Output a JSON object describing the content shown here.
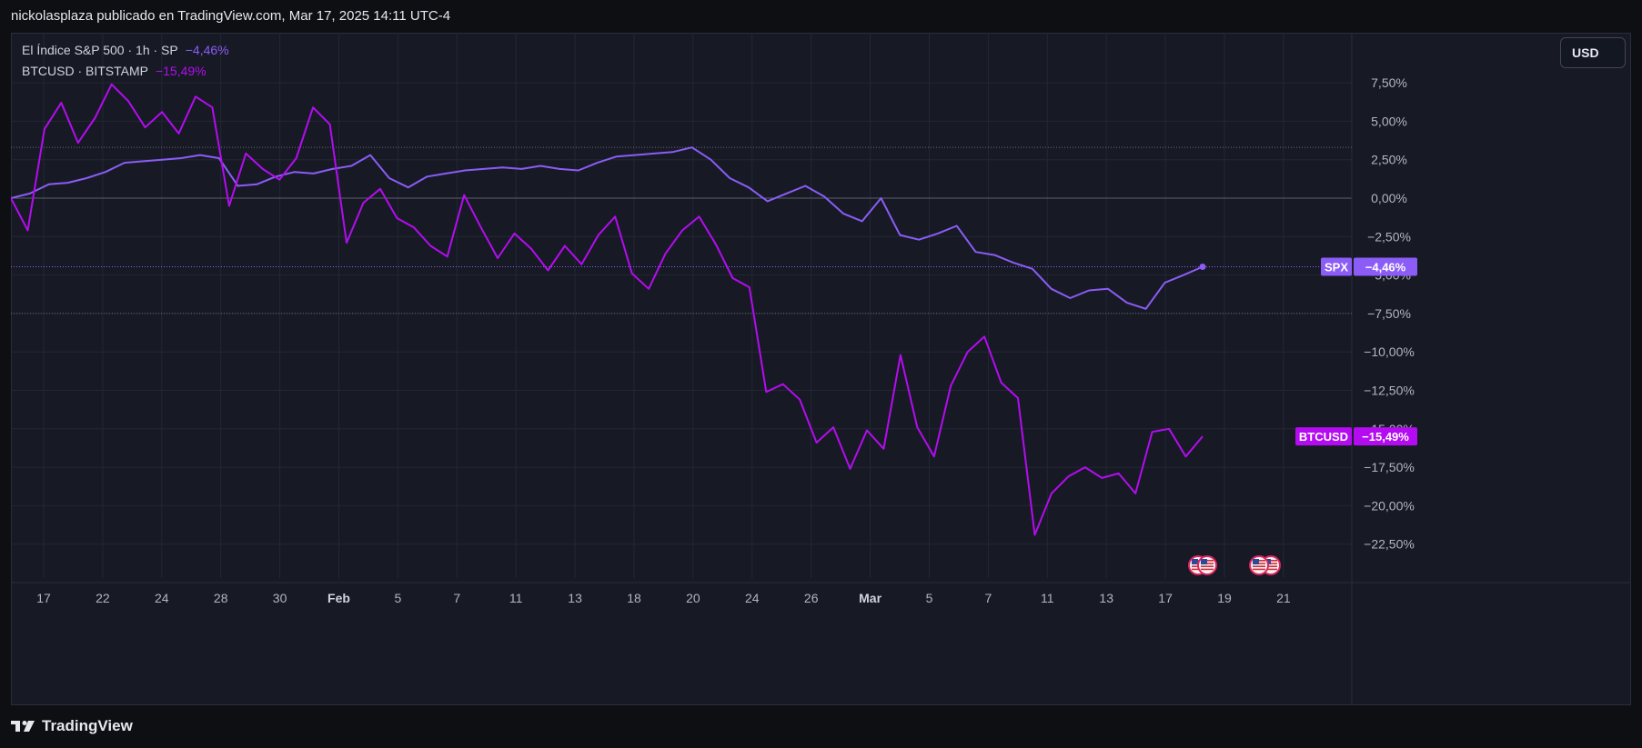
{
  "header": {
    "text": "nickolasplaza publicado en TradingView.com, Mar 17, 2025 14:11 UTC-4"
  },
  "legend": {
    "spx": {
      "label": "El Índice S&P 500 · 1h · SP",
      "change": "−4,46%"
    },
    "btc": {
      "label": "BTCUSD · BITSTAMP",
      "change": "−15,49%"
    }
  },
  "currency_button": {
    "label": "USD"
  },
  "footer": {
    "brand": "TradingView"
  },
  "colors": {
    "spx": "#8b5cf6",
    "btc": "#b40cf0",
    "background": "#171a25",
    "grid": "#232735"
  },
  "icons": [
    "us-flag-icon",
    "tradingview-logo-icon"
  ],
  "chart_data": {
    "type": "line",
    "title": "",
    "xlabel": "",
    "ylabel": "",
    "ylim": [
      -24.5,
      10
    ],
    "y_ticks": [
      7.5,
      5,
      2.5,
      0,
      -2.5,
      -5,
      -7.5,
      -10,
      -12.5,
      -15,
      -17.5,
      -20,
      -22.5
    ],
    "y_tick_labels": [
      "7,50%",
      "5,00%",
      "2,50%",
      "0,00%",
      "−2,50%",
      "−5,00%",
      "−7,50%",
      "−10,00%",
      "−12,50%",
      "−15,00%",
      "−17,50%",
      "−20,00%",
      "−22,50%"
    ],
    "x_ticks": [
      {
        "label": "17",
        "bold": false
      },
      {
        "label": "22",
        "bold": false
      },
      {
        "label": "24",
        "bold": false
      },
      {
        "label": "28",
        "bold": false
      },
      {
        "label": "30",
        "bold": false
      },
      {
        "label": "Feb",
        "bold": true
      },
      {
        "label": "5",
        "bold": false
      },
      {
        "label": "7",
        "bold": false
      },
      {
        "label": "11",
        "bold": false
      },
      {
        "label": "13",
        "bold": false
      },
      {
        "label": "18",
        "bold": false
      },
      {
        "label": "20",
        "bold": false
      },
      {
        "label": "24",
        "bold": false
      },
      {
        "label": "26",
        "bold": false
      },
      {
        "label": "Mar",
        "bold": true
      },
      {
        "label": "5",
        "bold": false
      },
      {
        "label": "7",
        "bold": false
      },
      {
        "label": "11",
        "bold": false
      },
      {
        "label": "13",
        "bold": false
      },
      {
        "label": "17",
        "bold": false
      },
      {
        "label": "19",
        "bold": false
      },
      {
        "label": "21",
        "bold": false
      }
    ],
    "series": [
      {
        "name": "SPX",
        "badge_label": "SPX",
        "badge_value": "−4,46%",
        "last": -4.46,
        "values": [
          0,
          0.3,
          0.9,
          1.0,
          1.3,
          1.7,
          2.3,
          2.4,
          2.5,
          2.6,
          2.8,
          2.6,
          0.8,
          0.9,
          1.4,
          1.7,
          1.6,
          1.9,
          2.1,
          2.8,
          1.3,
          0.7,
          1.4,
          1.6,
          1.8,
          1.9,
          2.0,
          1.9,
          2.1,
          1.9,
          1.8,
          2.3,
          2.7,
          2.8,
          2.9,
          3.0,
          3.3,
          2.5,
          1.3,
          0.7,
          -0.2,
          0.3,
          0.8,
          0.1,
          -1.0,
          -1.5,
          0.0,
          -2.4,
          -2.7,
          -2.3,
          -1.8,
          -3.5,
          -3.7,
          -4.2,
          -4.6,
          -5.9,
          -6.5,
          -6.0,
          -5.9,
          -6.8,
          -7.2,
          -5.5,
          -5.0,
          -4.46
        ]
      },
      {
        "name": "BTCUSD",
        "badge_label": "BTCUSD",
        "badge_value": "−15,49%",
        "last": -15.49,
        "values": [
          0,
          -2.1,
          4.5,
          6.2,
          3.6,
          5.2,
          7.4,
          6.3,
          4.6,
          5.6,
          4.2,
          6.6,
          5.9,
          -0.5,
          2.9,
          1.9,
          1.2,
          2.6,
          5.9,
          4.8,
          -2.9,
          -0.3,
          0.6,
          -1.3,
          -1.9,
          -3.1,
          -3.8,
          0.2,
          -1.9,
          -3.9,
          -2.3,
          -3.3,
          -4.7,
          -3.1,
          -4.3,
          -2.4,
          -1.2,
          -4.9,
          -5.9,
          -3.6,
          -2.1,
          -1.2,
          -3.0,
          -5.2,
          -5.8,
          -12.6,
          -12.1,
          -13.1,
          -15.9,
          -14.9,
          -17.6,
          -15.1,
          -16.3,
          -10.2,
          -14.9,
          -16.8,
          -12.2,
          -10.0,
          -9.0,
          -12.0,
          -13.0,
          -21.9,
          -19.2,
          -18.1,
          -17.5,
          -18.2,
          -17.9,
          -19.2,
          -15.2,
          -15.0,
          -16.8,
          -15.49
        ]
      }
    ]
  }
}
